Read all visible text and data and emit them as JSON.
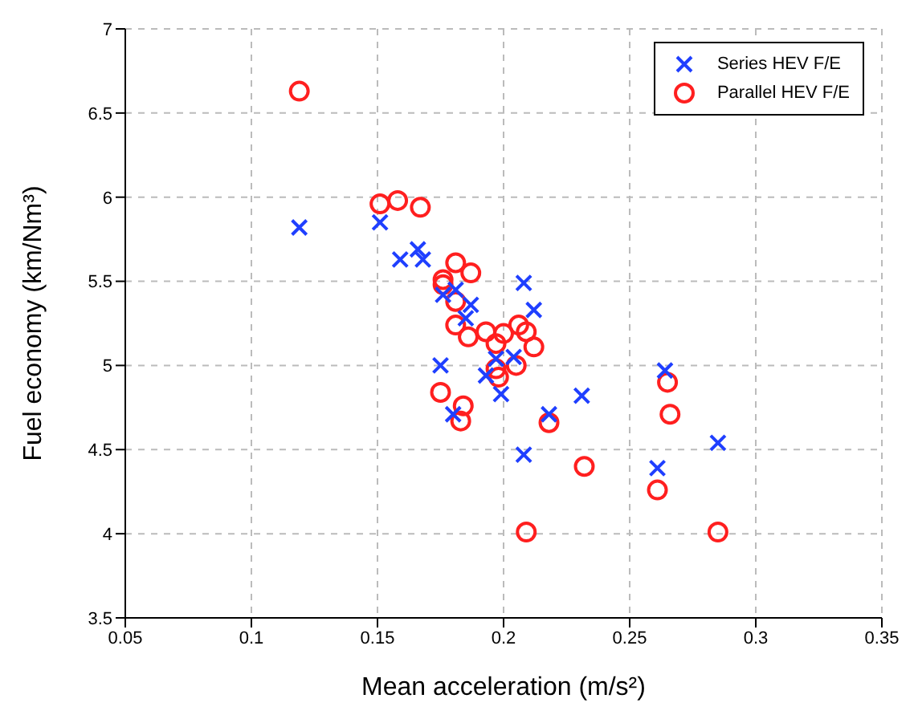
{
  "chart_data": {
    "type": "scatter",
    "xlabel": "Mean acceleration (m/s²)",
    "ylabel": "Fuel economy (km/Nm³)",
    "xlim": [
      0.05,
      0.35
    ],
    "ylim": [
      3.5,
      7
    ],
    "xticks": [
      0.05,
      0.1,
      0.15,
      0.2,
      0.25,
      0.3,
      0.35
    ],
    "yticks": [
      3.5,
      4,
      4.5,
      5,
      5.5,
      6,
      6.5,
      7
    ],
    "grid": true,
    "legend": "top right",
    "series": [
      {
        "name": "Series HEV F/E",
        "color": "#1f3fff",
        "marker": "cross",
        "x": [
          0.119,
          0.151,
          0.159,
          0.166,
          0.168,
          0.176,
          0.181,
          0.187,
          0.185,
          0.208,
          0.212,
          0.197,
          0.204,
          0.175,
          0.193,
          0.199,
          0.18,
          0.208,
          0.218,
          0.264,
          0.231,
          0.285,
          0.261
        ],
        "values": [
          5.82,
          5.85,
          5.63,
          5.69,
          5.63,
          5.42,
          5.45,
          5.36,
          5.28,
          5.49,
          5.33,
          5.04,
          5.05,
          5.0,
          4.94,
          4.83,
          4.71,
          4.47,
          4.71,
          4.97,
          4.82,
          4.54,
          4.39
        ]
      },
      {
        "name": "Parallel HEV F/E",
        "color": "#ff1f1f",
        "marker": "circle",
        "x": [
          0.119,
          0.151,
          0.158,
          0.181,
          0.187,
          0.176,
          0.176,
          0.181,
          0.181,
          0.186,
          0.193,
          0.2,
          0.197,
          0.206,
          0.209,
          0.212,
          0.205,
          0.175,
          0.197,
          0.198,
          0.184,
          0.183,
          0.209,
          0.218,
          0.265,
          0.266,
          0.261,
          0.232,
          0.285,
          0.167
        ],
        "values": [
          6.63,
          5.96,
          5.98,
          5.61,
          5.55,
          5.51,
          5.48,
          5.38,
          5.24,
          5.17,
          5.2,
          5.19,
          5.13,
          5.24,
          5.2,
          5.11,
          5.0,
          4.84,
          4.98,
          4.93,
          4.76,
          4.67,
          4.01,
          4.66,
          4.9,
          4.71,
          4.26,
          4.4,
          4.01,
          5.94
        ]
      }
    ]
  }
}
